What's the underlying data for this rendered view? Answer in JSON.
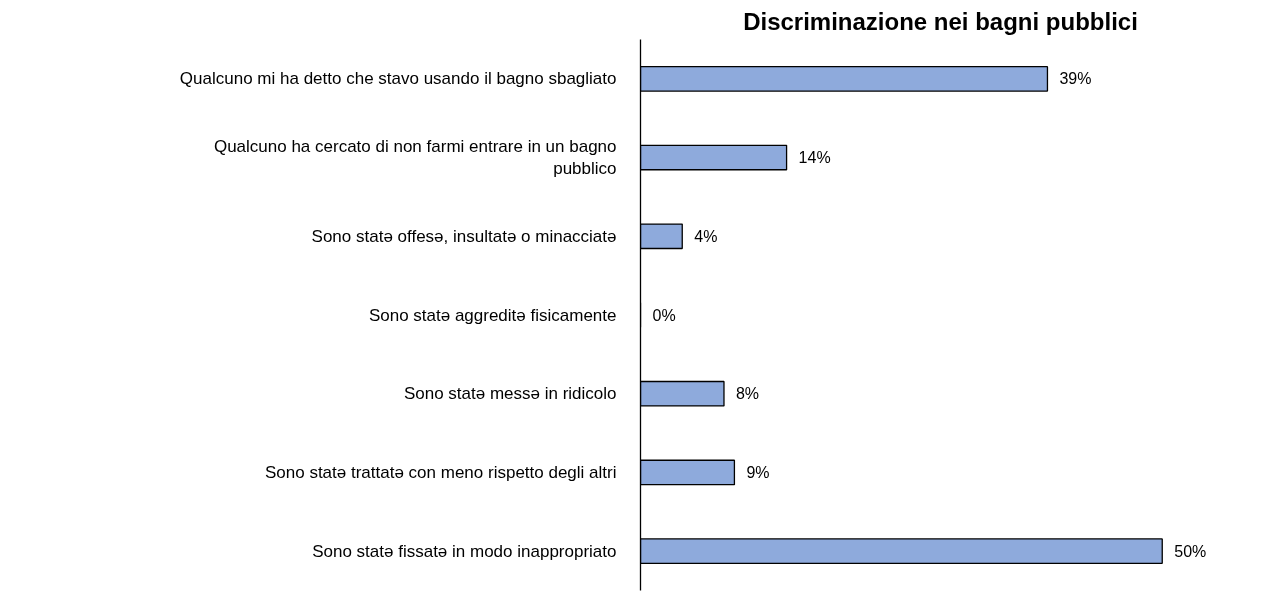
{
  "chart_data": {
    "type": "bar",
    "orientation": "horizontal",
    "title": "Discriminazione nei bagni pubblici",
    "categories": [
      "Qualcuno mi ha detto che stavo usando il bagno sbagliato",
      "Qualcuno ha cercato di non farmi entrare in un bagno pubblico",
      "Sono statə offesə, insultatə o minacciatə",
      "Sono statə aggreditə fisicamente",
      "Sono statə messə in ridicolo",
      "Sono statə trattatə con meno rispetto degli altri",
      "Sono statə fissatə in modo inappropriato"
    ],
    "values": [
      39,
      14,
      4,
      0,
      8,
      9,
      50
    ],
    "value_labels": [
      "39%",
      "14%",
      "4%",
      "0%",
      "8%",
      "9%",
      "50%"
    ],
    "color": "#8eaadc",
    "grid": false
  }
}
